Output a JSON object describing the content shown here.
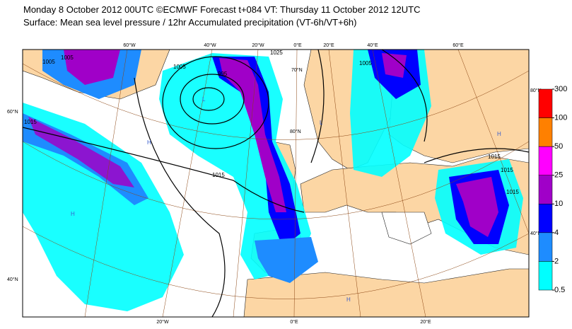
{
  "header": {
    "title": "Monday 8 October 2012 00UTC ©ECMWF Forecast t+084 VT: Thursday 11 October 2012 12UTC",
    "subtitle": "Surface: Mean sea level pressure / 12hr Accumulated precipitation (VT-6h/VT+6h)"
  },
  "map": {
    "lon_labels_top": [
      "60°W",
      "40°W",
      "20°W",
      "0°E",
      "20°E",
      "40°E",
      "60°E"
    ],
    "lon_labels_bottom": [
      "20°W",
      "0°E",
      "20°E"
    ],
    "lat_labels_left": [
      "60°N",
      "40°N"
    ],
    "lat_labels_right": [
      "80°N",
      "40°N"
    ],
    "lat_labels_inner": [
      "70°N",
      "80°N"
    ],
    "isobar_labels": [
      "1025",
      "1005",
      "995",
      "1015",
      "1015",
      "1005",
      "1015",
      "1015",
      "1015",
      "1005",
      "1005"
    ],
    "pressure_centres": [
      "H",
      "H",
      "H",
      "L",
      "L",
      "H"
    ]
  },
  "colorbar": {
    "ticks": [
      300,
      100,
      50,
      25,
      10,
      4,
      2,
      0.5
    ],
    "colors": [
      "#ff0000",
      "#ff8000",
      "#ff00ff",
      "#a000c8",
      "#0000ff",
      "#1e8cff",
      "#00ffff"
    ]
  }
}
